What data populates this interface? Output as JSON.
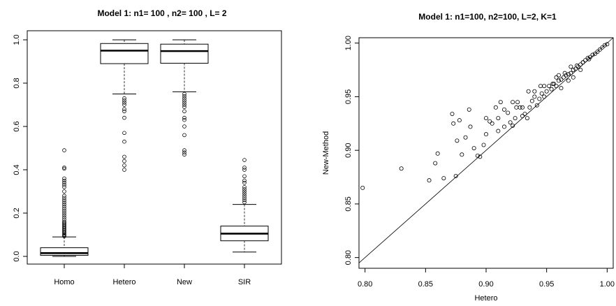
{
  "chart_data": [
    {
      "type": "box",
      "title": "Model 1: n1= 100 , n2= 100 , L= 2",
      "xlabel": "",
      "ylabel": "",
      "categories": [
        "Homo",
        "Hetero",
        "New",
        "SIR"
      ],
      "ylim": [
        0,
        1.0
      ],
      "yticks": [
        "0.0",
        "0.2",
        "0.4",
        "0.6",
        "0.8",
        "1.0"
      ],
      "boxes": [
        {
          "name": "Homo",
          "min": 0.0,
          "q1": 0.005,
          "median": 0.015,
          "q3": 0.04,
          "max": 0.09,
          "outliers": [
            0.093,
            0.097,
            0.1,
            0.105,
            0.11,
            0.115,
            0.12,
            0.125,
            0.13,
            0.135,
            0.14,
            0.145,
            0.15,
            0.155,
            0.16,
            0.17,
            0.18,
            0.19,
            0.2,
            0.21,
            0.22,
            0.23,
            0.24,
            0.25,
            0.26,
            0.27,
            0.28,
            0.3,
            0.32,
            0.33,
            0.34,
            0.35,
            0.36,
            0.405,
            0.41,
            0.49
          ]
        },
        {
          "name": "Hetero",
          "min": 0.75,
          "q1": 0.89,
          "median": 0.95,
          "q3": 0.983,
          "max": 1.0,
          "outliers": [
            0.73,
            0.72,
            0.71,
            0.7,
            0.68,
            0.67,
            0.64,
            0.57,
            0.53,
            0.46,
            0.44,
            0.42,
            0.4
          ]
        },
        {
          "name": "New",
          "min": 0.76,
          "q1": 0.892,
          "median": 0.948,
          "q3": 0.98,
          "max": 1.0,
          "outliers": [
            0.75,
            0.74,
            0.73,
            0.72,
            0.71,
            0.7,
            0.69,
            0.67,
            0.64,
            0.63,
            0.6,
            0.56,
            0.49,
            0.48,
            0.47
          ]
        },
        {
          "name": "SIR",
          "min": 0.02,
          "q1": 0.072,
          "median": 0.105,
          "q3": 0.14,
          "max": 0.24,
          "outliers": [
            0.25,
            0.26,
            0.27,
            0.28,
            0.29,
            0.3,
            0.31,
            0.32,
            0.34,
            0.35,
            0.37,
            0.4,
            0.41,
            0.445
          ]
        }
      ],
      "grid": false,
      "legend": "none"
    },
    {
      "type": "scatter",
      "title": "Model 1: n1=100, n2=100, L=2, K=1",
      "xlabel": "Hetero",
      "ylabel": "New-Method",
      "xlim": [
        0.795,
        1.005
      ],
      "ylim": [
        0.79,
        1.005
      ],
      "xticks": [
        "0.80",
        "0.85",
        "0.90",
        "0.95",
        "1.00"
      ],
      "yticks": [
        "0.80",
        "0.85",
        "0.90",
        "0.95",
        "1.00"
      ],
      "reference_line": "y = x",
      "x": [
        0.798,
        0.83,
        0.853,
        0.858,
        0.86,
        0.865,
        0.872,
        0.873,
        0.875,
        0.876,
        0.878,
        0.88,
        0.883,
        0.886,
        0.887,
        0.89,
        0.893,
        0.895,
        0.898,
        0.9,
        0.903,
        0.905,
        0.908,
        0.91,
        0.912,
        0.915,
        0.918,
        0.92,
        0.922,
        0.924,
        0.926,
        0.928,
        0.93,
        0.932,
        0.934,
        0.936,
        0.938,
        0.94,
        0.942,
        0.944,
        0.946,
        0.948,
        0.95,
        0.952,
        0.954,
        0.956,
        0.958,
        0.96,
        0.962,
        0.964,
        0.966,
        0.968,
        0.97,
        0.972,
        0.974,
        0.976,
        0.978,
        0.98,
        0.982,
        0.984,
        0.986,
        0.988,
        0.99,
        0.992,
        0.994,
        0.996,
        0.998,
        1.0,
        0.915,
        0.922,
        0.93,
        0.94,
        0.948,
        0.955,
        0.962,
        0.968,
        0.972,
        0.978,
        0.958,
        0.945,
        0.935,
        0.925,
        0.9,
        0.91,
        0.96,
        0.965,
        0.97,
        0.975,
        0.98,
        0.985
      ],
      "y": [
        0.865,
        0.883,
        0.872,
        0.888,
        0.897,
        0.874,
        0.934,
        0.925,
        0.876,
        0.909,
        0.928,
        0.896,
        0.912,
        0.938,
        0.922,
        0.902,
        0.895,
        0.894,
        0.905,
        0.93,
        0.927,
        0.925,
        0.94,
        0.918,
        0.945,
        0.922,
        0.935,
        0.926,
        0.923,
        0.93,
        0.945,
        0.94,
        0.932,
        0.934,
        0.93,
        0.94,
        0.946,
        0.95,
        0.942,
        0.948,
        0.953,
        0.95,
        0.955,
        0.96,
        0.957,
        0.962,
        0.96,
        0.965,
        0.966,
        0.968,
        0.97,
        0.971,
        0.972,
        0.975,
        0.976,
        0.978,
        0.98,
        0.982,
        0.984,
        0.986,
        0.987,
        0.989,
        0.99,
        0.992,
        0.994,
        0.996,
        0.998,
        0.999,
        0.938,
        0.945,
        0.94,
        0.955,
        0.96,
        0.962,
        0.958,
        0.965,
        0.968,
        0.975,
        0.968,
        0.96,
        0.955,
        0.94,
        0.915,
        0.93,
        0.97,
        0.972,
        0.978,
        0.979,
        0.982,
        0.985
      ],
      "grid": false,
      "legend": "none"
    }
  ]
}
